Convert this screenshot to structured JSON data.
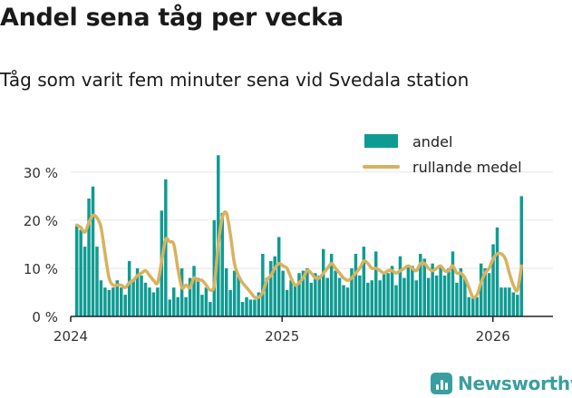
{
  "header": {
    "title": "Andel sena tåg per vecka",
    "subtitle": "Tåg som varit fem minuter sena vid Svedala station"
  },
  "brand": {
    "name": "Newsworthy",
    "icon": "newsworthy-logo-icon",
    "color": "#3a9ea0"
  },
  "chart_data": {
    "type": "bar",
    "y_unit": "percent",
    "ylim": [
      0,
      36
    ],
    "y_ticks": [
      0,
      10,
      20,
      30
    ],
    "y_tick_labels": [
      "0 %",
      "10 %",
      "20 %",
      "30 %"
    ],
    "x_ticks": [
      "2024-01-01",
      "2025-01-01",
      "2026-01-01"
    ],
    "x_tick_labels": [
      "2024",
      "2025",
      "2026"
    ],
    "grid": true,
    "legend": {
      "placement": "top-right",
      "entries": [
        {
          "label": "andel",
          "kind": "bar",
          "color": "#0f9b92"
        },
        {
          "label": "rullande medel",
          "kind": "line",
          "color": "#d9b25f"
        }
      ]
    },
    "series": [
      {
        "name": "andel",
        "kind": "bar",
        "color": "#0f9b92",
        "start_week": "2024-01-08",
        "interval": "week",
        "values": [
          19,
          18,
          14.5,
          24.5,
          27,
          14.5,
          7.5,
          6,
          5.5,
          6,
          7.5,
          6,
          4.5,
          11.5,
          7.5,
          10,
          8.5,
          7,
          6,
          5,
          6,
          22,
          28.5,
          3.5,
          6,
          4,
          10,
          4,
          8,
          10.5,
          8,
          4.5,
          6,
          3,
          20,
          33.5,
          21.5,
          10,
          5.5,
          9.5,
          8.5,
          3,
          4,
          3.5,
          3.5,
          5,
          13,
          8,
          11.5,
          12.5,
          16.5,
          9.5,
          5.5,
          7.5,
          6.5,
          9,
          9.5,
          10,
          7,
          9,
          8.5,
          14,
          8,
          13,
          9.5,
          8,
          6.5,
          6,
          10,
          13,
          8.5,
          14.5,
          7,
          7.5,
          13.5,
          7.5,
          9,
          9,
          10.5,
          6.5,
          12.5,
          8,
          10.5,
          10.5,
          7.5,
          13,
          12,
          8,
          11,
          8.5,
          10.5,
          8.5,
          10,
          13.5,
          7,
          10,
          8,
          4,
          4,
          4,
          11,
          10,
          9,
          15,
          18.5,
          6,
          6,
          6,
          5,
          4.5,
          25
        ]
      },
      {
        "name": "rullande medel",
        "kind": "line",
        "color": "#d9b25f",
        "start_week": "2024-01-08",
        "interval": "week",
        "values": [
          19,
          18.5,
          17.5,
          19.5,
          21,
          20.5,
          18.5,
          13,
          8,
          6.5,
          6.5,
          6.5,
          6,
          7,
          7.5,
          8.5,
          9,
          9.5,
          8.5,
          7.5,
          7,
          11.5,
          16,
          15.5,
          15,
          10,
          6,
          6.5,
          6,
          8,
          7.5,
          7.5,
          6.5,
          5.5,
          6.5,
          15,
          20.5,
          21.5,
          17,
          11,
          8.5,
          7,
          6,
          5,
          4,
          4,
          5,
          7.5,
          8.5,
          10,
          11,
          10.5,
          10,
          8,
          6.5,
          7,
          8,
          9.5,
          9,
          8,
          8,
          9,
          10,
          11,
          10,
          9,
          8,
          7.5,
          8,
          9,
          10,
          11.5,
          11,
          10,
          10,
          9.5,
          9,
          9.5,
          9.5,
          9,
          9.5,
          10,
          10.5,
          10,
          9.5,
          11,
          11,
          10,
          9.5,
          10,
          10.5,
          9.5,
          9.5,
          10.5,
          9,
          9,
          8,
          6,
          4,
          4.5,
          7,
          9,
          10,
          12,
          13,
          13,
          12,
          9,
          6.5,
          5.5,
          10.5
        ]
      }
    ]
  }
}
